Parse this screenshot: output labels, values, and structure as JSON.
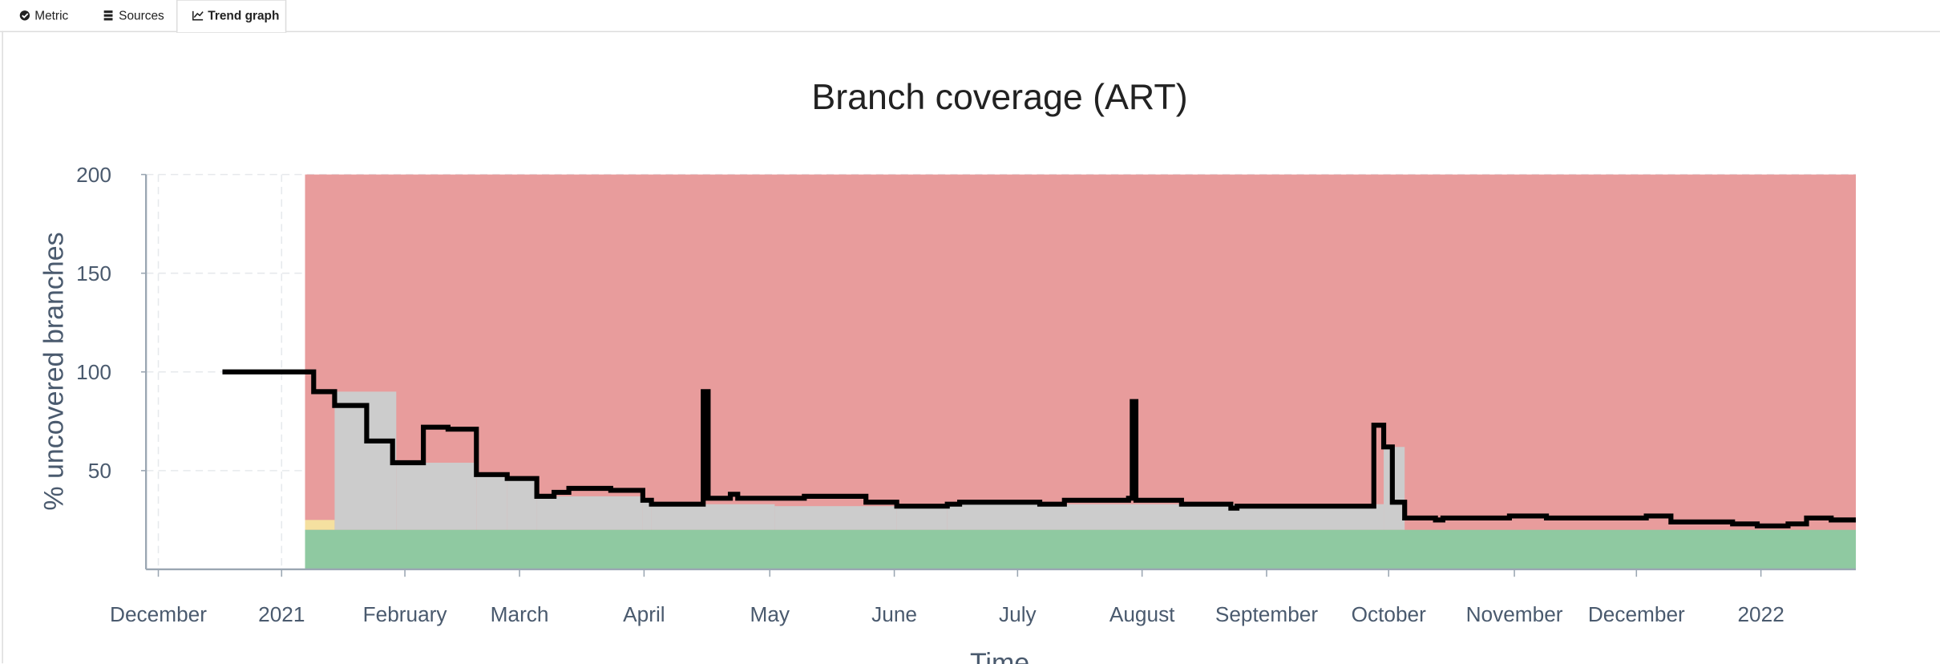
{
  "tabs": [
    "Metric",
    "Sources",
    "Trend graph"
  ],
  "chart_data": {
    "type": "line",
    "title": "Branch coverage (ART)",
    "ylabel": "% uncovered branches",
    "xlabel": "Time",
    "ylim": [
      0,
      200
    ],
    "yticks": [
      50,
      100,
      150,
      200
    ],
    "xlim": [
      -0.1,
      13.77
    ],
    "xticks": [
      {
        "value": 0,
        "label": "December"
      },
      {
        "value": 1,
        "label": "2021"
      },
      {
        "value": 2,
        "label": "February"
      },
      {
        "value": 2.93,
        "label": "March"
      },
      {
        "value": 3.94,
        "label": "April"
      },
      {
        "value": 4.96,
        "label": "May"
      },
      {
        "value": 5.97,
        "label": "June"
      },
      {
        "value": 6.97,
        "label": "July"
      },
      {
        "value": 7.98,
        "label": "August"
      },
      {
        "value": 8.99,
        "label": "September"
      },
      {
        "value": 9.98,
        "label": "October"
      },
      {
        "value": 11,
        "label": "November"
      },
      {
        "value": 11.99,
        "label": "December"
      },
      {
        "value": 13,
        "label": "2022"
      }
    ],
    "grid": true,
    "areas": [
      {
        "color": "#e89c9c",
        "x": [
          1.19,
          13.77
        ],
        "low": [
          0,
          0
        ],
        "high": [
          200,
          200
        ]
      },
      {
        "color": "#f5e0a0",
        "x": [
          1.19,
          1.43
        ],
        "low": [
          20,
          20
        ],
        "high": [
          25,
          25
        ]
      },
      {
        "color": "#cccccc",
        "x": [
          1.43,
          1.93,
          2.58,
          2.83,
          3.07,
          3.93,
          4.0,
          5.0,
          5.99,
          6.4,
          9.94,
          10.11
        ],
        "low": [
          20,
          20,
          20,
          20,
          20,
          20,
          20,
          20,
          20,
          20,
          20,
          20
        ],
        "high": [
          90,
          54,
          48,
          46,
          37,
          35,
          33,
          32,
          32,
          33,
          62,
          20
        ]
      },
      {
        "color": "#8fc9a1",
        "x": [
          1.19,
          13.77
        ],
        "low": [
          0,
          0
        ],
        "high": [
          20,
          20
        ]
      }
    ],
    "series": [
      {
        "color": "#000000",
        "x": [
          0.52,
          1.26,
          1.43,
          1.69,
          1.9,
          2.15,
          2.35,
          2.58,
          2.83,
          3.07,
          3.21,
          3.33,
          3.67,
          3.93,
          4.0,
          4.42,
          4.46,
          4.64,
          4.7,
          5.24,
          5.74,
          5.99,
          6.4,
          6.5,
          7.15,
          7.35,
          7.87,
          7.9,
          7.93,
          8.3,
          8.7,
          8.75,
          9.86,
          9.94,
          10.01,
          10.11,
          10.36,
          10.42,
          10.96,
          11.26,
          12.07,
          12.27,
          12.77,
          12.97,
          13.22,
          13.37,
          13.57,
          13.77
        ],
        "values": [
          100,
          90,
          83,
          65,
          54,
          72,
          71,
          48,
          46,
          37,
          39,
          41,
          40,
          35,
          33,
          90,
          36,
          38,
          36,
          37,
          34,
          32,
          33,
          34,
          33,
          35,
          36,
          85,
          35,
          33,
          31,
          32,
          73,
          62,
          34,
          26,
          25,
          26,
          27,
          26,
          27,
          24,
          23,
          22,
          23,
          26,
          25,
          25
        ]
      }
    ]
  }
}
